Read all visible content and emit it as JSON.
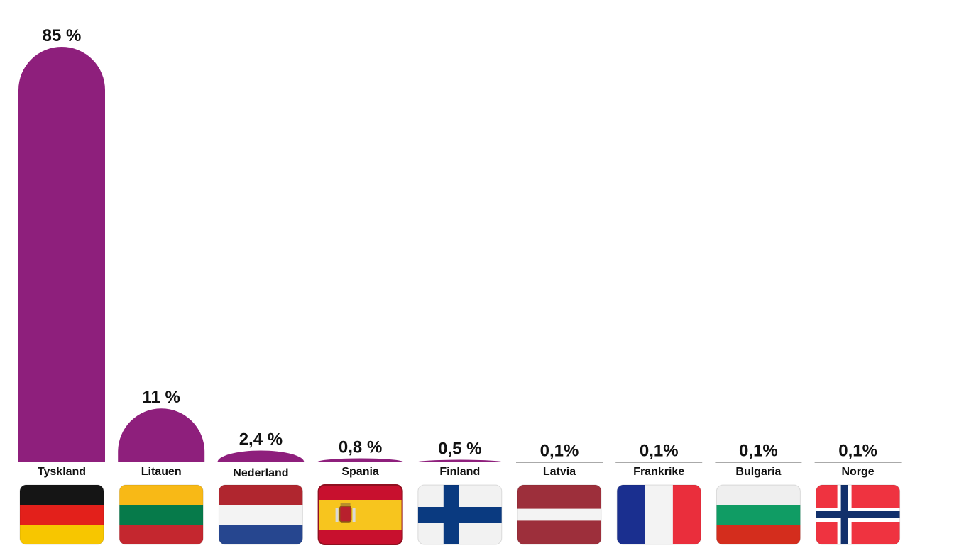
{
  "chart_data": {
    "type": "bar",
    "title": "",
    "xlabel": "",
    "ylabel": "",
    "ylim": [
      0,
      85
    ],
    "grid": false,
    "legend": "none",
    "bar_color": "#8e1f7c",
    "categories": [
      "Tyskland",
      "Litauen",
      "Nederland",
      "Spania",
      "Finland",
      "Latvia",
      "Frankrike",
      "Bulgaria",
      "Norge"
    ],
    "values": [
      85,
      11,
      2.4,
      0.8,
      0.5,
      0.1,
      0.1,
      0.1,
      0.1
    ],
    "value_labels": [
      "85 %",
      "11 %",
      "2,4 %",
      "0,8  %",
      "0,5 %",
      "0,1%",
      "0,1%",
      "0,1%",
      "0,1%"
    ],
    "flags": [
      "germany-flag",
      "lithuania-flag",
      "netherlands-flag",
      "spain-flag",
      "finland-flag",
      "latvia-flag",
      "france-flag",
      "bulgaria-flag",
      "norway-flag"
    ]
  }
}
